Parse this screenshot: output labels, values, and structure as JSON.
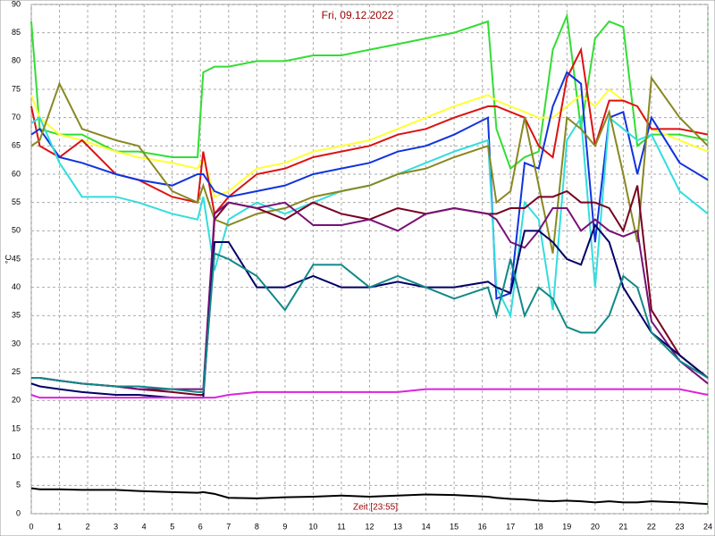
{
  "chart_data": {
    "type": "line",
    "title": "Fri, 09.12.2022",
    "x_label": "Zeit [23:55]",
    "y_label": "°C",
    "x": [
      0,
      0.3,
      1,
      1.8,
      3,
      3.8,
      5,
      5.9,
      6.1,
      6.5,
      7,
      8,
      9,
      10,
      11,
      12,
      13,
      14,
      15,
      16.2,
      16.5,
      17,
      17.5,
      18,
      18.5,
      19,
      19.5,
      20,
      20.5,
      21,
      21.5,
      22,
      23,
      24
    ],
    "xlim": [
      0,
      24
    ],
    "xticks": [
      0,
      1,
      2,
      3,
      4,
      5,
      6,
      7,
      8,
      9,
      10,
      11,
      12,
      13,
      14,
      15,
      16,
      17,
      18,
      19,
      20,
      21,
      22,
      23,
      24
    ],
    "ylim": [
      0,
      90
    ],
    "yticks": [
      0,
      5,
      10,
      15,
      20,
      25,
      30,
      35,
      40,
      45,
      50,
      55,
      60,
      65,
      70,
      75,
      80,
      85,
      90
    ],
    "grid": true,
    "series": [
      {
        "color": "#33dd33",
        "values": [
          87,
          68,
          67,
          67,
          64,
          64,
          63,
          63,
          78,
          79,
          79,
          80,
          80,
          81,
          81,
          82,
          83,
          84,
          85,
          87,
          68,
          61,
          63,
          64,
          82,
          88,
          68,
          84,
          87,
          86,
          65,
          67,
          67,
          66
        ]
      },
      {
        "color": "#ffff33",
        "values": [
          74,
          70,
          67,
          66,
          64,
          63,
          62,
          61,
          63,
          56,
          57,
          61,
          62,
          64,
          65,
          66,
          68,
          70,
          72,
          74,
          73,
          72,
          71,
          70,
          70,
          72,
          74,
          72,
          75,
          73,
          72,
          68,
          66,
          64
        ]
      },
      {
        "color": "#dd1111",
        "values": [
          72,
          65,
          63,
          66,
          60,
          59,
          56,
          55,
          64,
          53,
          56,
          60,
          61,
          63,
          64,
          65,
          67,
          68,
          70,
          72,
          72,
          71,
          70,
          65,
          63,
          77,
          82,
          65,
          73,
          73,
          72,
          68,
          68,
          67
        ]
      },
      {
        "color": "#1133dd",
        "values": [
          67,
          68,
          63,
          62,
          60,
          59,
          58,
          60,
          60,
          57,
          56,
          57,
          58,
          60,
          61,
          62,
          64,
          65,
          67,
          70,
          38,
          39,
          62,
          61,
          72,
          78,
          76,
          48,
          70,
          71,
          60,
          70,
          62,
          59
        ]
      },
      {
        "color": "#33dddd",
        "values": [
          69,
          70,
          62,
          56,
          56,
          55,
          53,
          52,
          56,
          43,
          52,
          55,
          53,
          55,
          57,
          58,
          60,
          62,
          64,
          66,
          40,
          35,
          55,
          52,
          36,
          66,
          70,
          40,
          70,
          68,
          66,
          67,
          57,
          53
        ]
      },
      {
        "color": "#888822",
        "values": [
          65,
          66,
          76,
          68,
          66,
          65,
          57,
          55,
          58,
          52,
          51,
          53,
          54,
          56,
          57,
          58,
          60,
          61,
          63,
          65,
          55,
          57,
          70,
          58,
          46,
          70,
          68,
          65,
          71,
          60,
          48,
          77,
          70,
          65
        ]
      },
      {
        "color": "#770022",
        "values": [
          24,
          24,
          23.5,
          23,
          22.5,
          22,
          21.5,
          21,
          21,
          52,
          55,
          54,
          52,
          55,
          53,
          52,
          54,
          53,
          54,
          53,
          53,
          54,
          54,
          56,
          56,
          57,
          55,
          55,
          54,
          50,
          58,
          36,
          28,
          24
        ]
      },
      {
        "color": "#771177",
        "values": [
          24,
          24,
          23.5,
          23,
          22.5,
          22,
          22,
          22,
          22,
          53,
          55,
          54,
          55,
          51,
          51,
          52,
          50,
          53,
          54,
          53,
          52,
          48,
          47,
          50,
          54,
          54,
          50,
          52,
          50,
          49,
          50,
          34,
          27,
          23
        ]
      },
      {
        "color": "#000066",
        "values": [
          23,
          22.5,
          22,
          21.5,
          21,
          21,
          20.5,
          20.5,
          20.5,
          48,
          48,
          40,
          40,
          42,
          40,
          40,
          41,
          40,
          40,
          41,
          40,
          39,
          50,
          50,
          48,
          45,
          44,
          51,
          48,
          40,
          36,
          32,
          28,
          24
        ]
      },
      {
        "color": "#118888",
        "values": [
          24,
          24,
          23.5,
          23,
          22.5,
          22.5,
          22,
          21.5,
          21.5,
          46,
          45,
          42,
          36,
          44,
          44,
          40,
          42,
          40,
          38,
          40,
          35,
          45,
          35,
          40,
          38,
          33,
          32,
          32,
          35,
          42,
          40,
          32,
          27,
          24
        ]
      },
      {
        "color": "#dd22dd",
        "values": [
          21,
          20.5,
          20.5,
          20.5,
          20.5,
          20.5,
          20.5,
          20.5,
          20.5,
          20.5,
          21,
          21.5,
          21.5,
          21.5,
          21.5,
          21.5,
          21.5,
          22,
          22,
          22,
          22,
          22,
          22,
          22,
          22,
          22,
          22,
          22,
          22,
          22,
          22,
          22,
          22,
          21
        ]
      },
      {
        "color": "#000000",
        "values": [
          4.5,
          4.3,
          4.3,
          4.2,
          4.2,
          4,
          3.8,
          3.7,
          3.8,
          3.5,
          2.8,
          2.7,
          2.9,
          3,
          3.2,
          3,
          3.2,
          3.4,
          3.3,
          3,
          2.8,
          2.6,
          2.5,
          2.3,
          2.2,
          2.3,
          2.2,
          2,
          2.2,
          2,
          2,
          2.2,
          2,
          1.7
        ]
      }
    ]
  }
}
